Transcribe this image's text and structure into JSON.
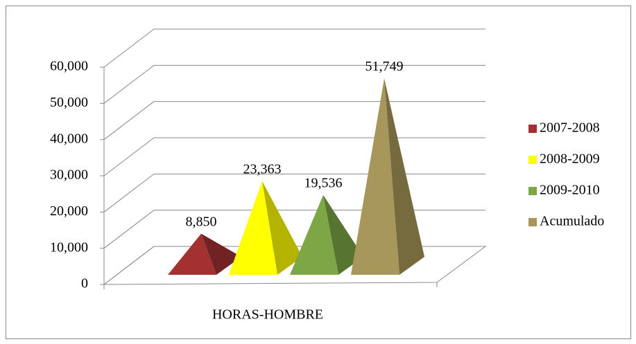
{
  "chart_data": {
    "type": "pyramid3d",
    "categories": [
      "HORAS-HOMBRE"
    ],
    "series": [
      {
        "name": "2007-2008",
        "color": "#a33131",
        "values": [
          8850
        ],
        "value_labels": [
          "8,850"
        ]
      },
      {
        "name": "2008-2009",
        "color": "#ffff00",
        "values": [
          23363
        ],
        "value_labels": [
          "23,363"
        ]
      },
      {
        "name": "2009-2010",
        "color": "#7da646",
        "values": [
          19536
        ],
        "value_labels": [
          "19,536"
        ]
      },
      {
        "name": "Acumulado",
        "color": "#a8975a",
        "values": [
          51749
        ],
        "value_labels": [
          "51,749"
        ]
      }
    ],
    "ylim": [
      0,
      60000
    ],
    "yticks": [
      {
        "value": 0,
        "label": "0"
      },
      {
        "value": 10000,
        "label": "10,000"
      },
      {
        "value": 20000,
        "label": "20,000"
      },
      {
        "value": 30000,
        "label": "30,000"
      },
      {
        "value": 40000,
        "label": "40,000"
      },
      {
        "value": 50000,
        "label": "50,000"
      },
      {
        "value": 60000,
        "label": "60,000"
      }
    ],
    "grid": true,
    "legend": "right"
  }
}
